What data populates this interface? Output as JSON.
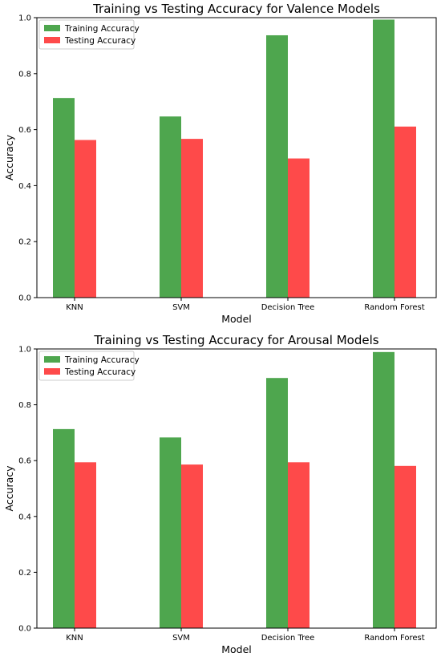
{
  "chart_data": [
    {
      "type": "bar",
      "title": "Training vs Testing Accuracy for Valence Models",
      "xlabel": "Model",
      "ylabel": "Accuracy",
      "ylim": [
        0,
        1.0
      ],
      "yticks": [
        "0.0",
        "0.2",
        "0.4",
        "0.6",
        "0.8",
        "1.0"
      ],
      "categories": [
        "KNN",
        "SVM",
        "Decision Tree",
        "Random Forest"
      ],
      "legend": "top-left",
      "grid": false,
      "series": [
        {
          "name": "Training Accuracy",
          "color": "#4ea64e",
          "values": [
            0.713,
            0.647,
            0.937,
            0.993
          ]
        },
        {
          "name": "Testing Accuracy",
          "color": "#fe4a4a",
          "values": [
            0.563,
            0.567,
            0.497,
            0.611
          ]
        }
      ]
    },
    {
      "type": "bar",
      "title": "Training vs Testing Accuracy for Arousal Models",
      "xlabel": "Model",
      "ylabel": "Accuracy",
      "ylim": [
        0,
        1.0
      ],
      "yticks": [
        "0.0",
        "0.2",
        "0.4",
        "0.6",
        "0.8",
        "1.0"
      ],
      "categories": [
        "KNN",
        "SVM",
        "Decision Tree",
        "Random Forest"
      ],
      "legend": "top-left",
      "grid": false,
      "series": [
        {
          "name": "Training Accuracy",
          "color": "#4ea64e",
          "values": [
            0.713,
            0.683,
            0.896,
            0.989
          ]
        },
        {
          "name": "Testing Accuracy",
          "color": "#fe4a4a",
          "values": [
            0.594,
            0.586,
            0.594,
            0.581
          ]
        }
      ]
    }
  ]
}
